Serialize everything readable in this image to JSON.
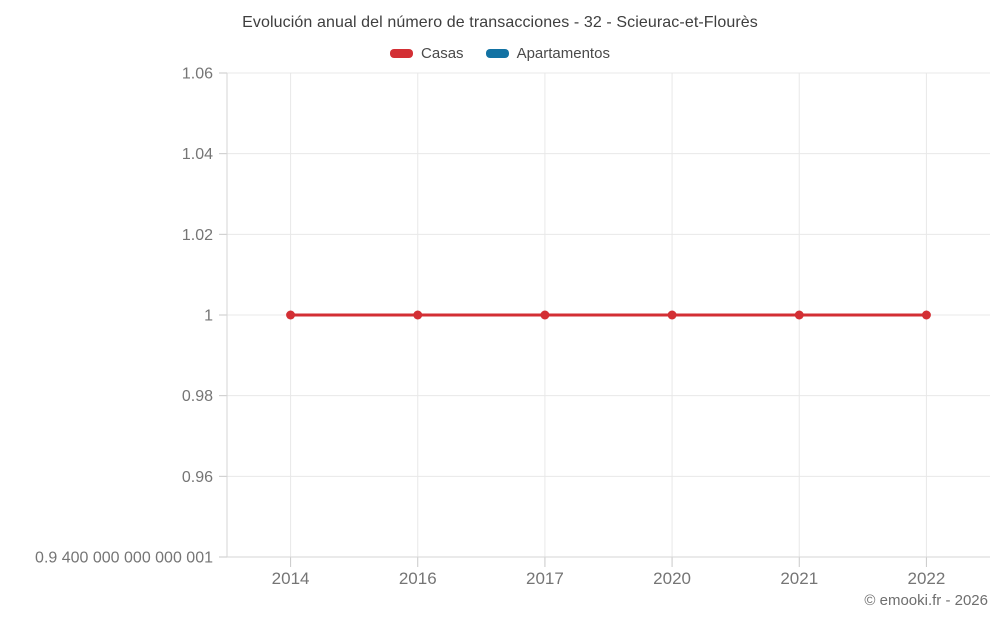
{
  "chart_data": {
    "type": "line",
    "title": "Evolución anual del número de transacciones - 32 - Scieurac-et-Flourès",
    "xlabel": "",
    "ylabel": "",
    "categories": [
      "2014",
      "2016",
      "2017",
      "2020",
      "2021",
      "2022"
    ],
    "series": [
      {
        "name": "Casas",
        "color": "#d32f34",
        "values": [
          1,
          1,
          1,
          1,
          1,
          1
        ]
      },
      {
        "name": "Apartamentos",
        "color": "#1272a3",
        "values": []
      }
    ],
    "ylim": [
      0.94,
      1.06
    ],
    "y_ticks": [
      {
        "value": 1.06,
        "label": "1.06"
      },
      {
        "value": 1.04,
        "label": "1.04"
      },
      {
        "value": 1.02,
        "label": "1.02"
      },
      {
        "value": 1.0,
        "label": "1"
      },
      {
        "value": 0.98,
        "label": "0.98"
      },
      {
        "value": 0.96,
        "label": "0.96"
      },
      {
        "value": 0.94,
        "label": "0.9 400 000 000 000 001"
      }
    ],
    "grid": true,
    "legend_position": "top",
    "palette": {
      "gridline": "#e8e8e8",
      "axis_border": "#d6d6d6",
      "tick_mark": "#c9c9c9",
      "tick_label": "#757575"
    }
  },
  "footer": {
    "copyright": "© emooki.fr - 2026"
  }
}
